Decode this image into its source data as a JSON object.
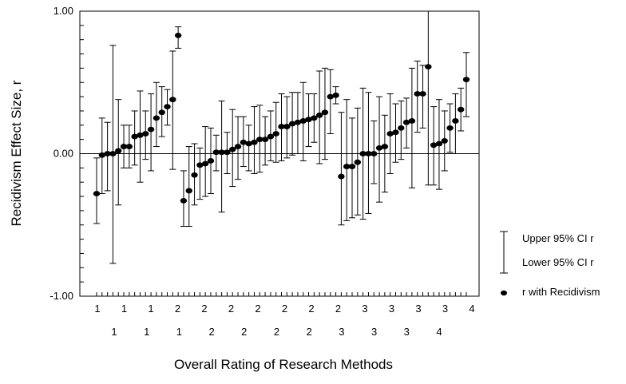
{
  "chart_data": {
    "type": "scatter",
    "xlabel": "Overall Rating of Research Methods",
    "ylabel": "Recidivism Effect Size, r",
    "ylim": [
      -1.0,
      1.0
    ],
    "yticks": [
      {
        "value": 1.0,
        "label": "1.00"
      },
      {
        "value": 0.0,
        "label": "0.00"
      },
      {
        "value": -1.0,
        "label": "-1.00"
      }
    ],
    "reference_line": 0.0,
    "x_tick_rows": [
      [
        "1",
        "1",
        "1",
        "2",
        "2",
        "2",
        "2",
        "2",
        "2",
        "2",
        "3",
        "3",
        "3",
        "3",
        "4"
      ],
      [
        "1",
        "1",
        "1",
        "2",
        "2",
        "2",
        "2",
        "3",
        "3",
        "3",
        "4"
      ]
    ],
    "legend": {
      "position": "right",
      "entries": [
        {
          "symbol": "ci-upper",
          "label": "Upper 95% CI r"
        },
        {
          "symbol": "ci-lower",
          "label": "Lower 95% CI r"
        },
        {
          "symbol": "point",
          "label": "r with Recidivism"
        }
      ]
    },
    "series": [
      {
        "name": "r with Recidivism",
        "points": [
          {
            "rating": 1,
            "r": -0.28,
            "lower": -0.49,
            "upper": -0.03
          },
          {
            "rating": 1,
            "r": -0.01,
            "lower": -0.28,
            "upper": 0.25
          },
          {
            "rating": 1,
            "r": 0.0,
            "lower": -0.26,
            "upper": 0.22
          },
          {
            "rating": 1,
            "r": 0.0,
            "lower": -0.77,
            "upper": 0.76
          },
          {
            "rating": 1,
            "r": 0.02,
            "lower": -0.36,
            "upper": 0.38
          },
          {
            "rating": 1,
            "r": 0.05,
            "lower": -0.1,
            "upper": 0.2
          },
          {
            "rating": 1,
            "r": 0.05,
            "lower": -0.1,
            "upper": 0.2
          },
          {
            "rating": 1,
            "r": 0.12,
            "lower": -0.08,
            "upper": 0.3
          },
          {
            "rating": 1,
            "r": 0.13,
            "lower": -0.2,
            "upper": 0.44
          },
          {
            "rating": 1,
            "r": 0.14,
            "lower": -0.04,
            "upper": 0.3
          },
          {
            "rating": 1,
            "r": 0.17,
            "lower": -0.12,
            "upper": 0.42
          },
          {
            "rating": 1,
            "r": 0.25,
            "lower": 0.05,
            "upper": 0.5
          },
          {
            "rating": 1,
            "r": 0.29,
            "lower": 0.12,
            "upper": 0.47
          },
          {
            "rating": 1,
            "r": 0.33,
            "lower": 0.2,
            "upper": 0.45
          },
          {
            "rating": 1,
            "r": 0.38,
            "lower": -0.11,
            "upper": 0.72
          },
          {
            "rating": 1,
            "r": 0.83,
            "lower": 0.74,
            "upper": 0.89
          },
          {
            "rating": 2,
            "r": -0.33,
            "lower": -0.51,
            "upper": -0.12
          },
          {
            "rating": 2,
            "r": -0.26,
            "lower": -0.51,
            "upper": 0.05
          },
          {
            "rating": 2,
            "r": -0.15,
            "lower": -0.36,
            "upper": 0.07
          },
          {
            "rating": 2,
            "r": -0.08,
            "lower": -0.32,
            "upper": 0.04
          },
          {
            "rating": 2,
            "r": -0.07,
            "lower": -0.3,
            "upper": 0.19
          },
          {
            "rating": 2,
            "r": -0.05,
            "lower": -0.28,
            "upper": 0.18
          },
          {
            "rating": 2,
            "r": 0.01,
            "lower": -0.12,
            "upper": 0.13
          },
          {
            "rating": 2,
            "r": 0.01,
            "lower": -0.41,
            "upper": 0.37
          },
          {
            "rating": 2,
            "r": 0.01,
            "lower": -0.14,
            "upper": 0.15
          },
          {
            "rating": 2,
            "r": 0.03,
            "lower": -0.23,
            "upper": 0.31
          },
          {
            "rating": 2,
            "r": 0.05,
            "lower": -0.18,
            "upper": 0.26
          },
          {
            "rating": 2,
            "r": 0.08,
            "lower": -0.09,
            "upper": 0.26
          },
          {
            "rating": 2,
            "r": 0.07,
            "lower": -0.12,
            "upper": 0.2
          },
          {
            "rating": 2,
            "r": 0.08,
            "lower": -0.14,
            "upper": 0.33
          },
          {
            "rating": 2,
            "r": 0.1,
            "lower": -0.13,
            "upper": 0.34
          },
          {
            "rating": 2,
            "r": 0.1,
            "lower": -0.08,
            "upper": 0.26
          },
          {
            "rating": 2,
            "r": 0.12,
            "lower": -0.05,
            "upper": 0.3
          },
          {
            "rating": 2,
            "r": 0.14,
            "lower": -0.06,
            "upper": 0.36
          },
          {
            "rating": 2,
            "r": 0.19,
            "lower": -0.05,
            "upper": 0.42
          },
          {
            "rating": 2,
            "r": 0.19,
            "lower": -0.03,
            "upper": 0.4
          },
          {
            "rating": 2,
            "r": 0.21,
            "lower": -0.01,
            "upper": 0.43
          },
          {
            "rating": 2,
            "r": 0.22,
            "lower": 0.0,
            "upper": 0.43
          },
          {
            "rating": 2,
            "r": 0.23,
            "lower": -0.05,
            "upper": 0.5
          },
          {
            "rating": 2,
            "r": 0.24,
            "lower": 0.05,
            "upper": 0.42
          },
          {
            "rating": 2,
            "r": 0.25,
            "lower": 0.08,
            "upper": 0.42
          },
          {
            "rating": 2,
            "r": 0.27,
            "lower": -0.07,
            "upper": 0.58
          },
          {
            "rating": 2,
            "r": 0.29,
            "lower": -0.04,
            "upper": 0.6
          },
          {
            "rating": 2,
            "r": 0.4,
            "lower": 0.14,
            "upper": 0.59
          },
          {
            "rating": 2,
            "r": 0.41,
            "lower": 0.35,
            "upper": 0.47
          },
          {
            "rating": 3,
            "r": -0.16,
            "lower": -0.5,
            "upper": 0.29
          },
          {
            "rating": 3,
            "r": -0.09,
            "lower": -0.47,
            "upper": 0.38
          },
          {
            "rating": 3,
            "r": -0.09,
            "lower": -0.45,
            "upper": 0.25
          },
          {
            "rating": 3,
            "r": -0.06,
            "lower": -0.43,
            "upper": 0.32
          },
          {
            "rating": 3,
            "r": 0.0,
            "lower": -0.46,
            "upper": 0.46
          },
          {
            "rating": 3,
            "r": 0.0,
            "lower": -0.42,
            "upper": 0.43
          },
          {
            "rating": 3,
            "r": 0.0,
            "lower": -0.21,
            "upper": 0.23
          },
          {
            "rating": 3,
            "r": 0.04,
            "lower": -0.34,
            "upper": 0.4
          },
          {
            "rating": 3,
            "r": 0.05,
            "lower": -0.27,
            "upper": 0.27
          },
          {
            "rating": 3,
            "r": 0.14,
            "lower": -0.14,
            "upper": 0.42
          },
          {
            "rating": 3,
            "r": 0.15,
            "lower": -0.06,
            "upper": 0.35
          },
          {
            "rating": 3,
            "r": 0.18,
            "lower": -0.04,
            "upper": 0.37
          },
          {
            "rating": 3,
            "r": 0.22,
            "lower": 0.04,
            "upper": 0.39
          },
          {
            "rating": 3,
            "r": 0.23,
            "lower": -0.24,
            "upper": 0.6
          },
          {
            "rating": 3,
            "r": 0.42,
            "lower": 0.15,
            "upper": 0.65
          },
          {
            "rating": 3,
            "r": 0.42,
            "lower": 0.18,
            "upper": 0.62
          },
          {
            "rating": 3,
            "r": 0.61,
            "lower": -0.22,
            "upper": 1.0
          },
          {
            "rating": 4,
            "r": 0.06,
            "lower": -0.22,
            "upper": 0.33
          },
          {
            "rating": 4,
            "r": 0.07,
            "lower": -0.25,
            "upper": 0.38
          },
          {
            "rating": 4,
            "r": 0.09,
            "lower": -0.12,
            "upper": 0.3
          },
          {
            "rating": 4,
            "r": 0.18,
            "lower": 0.01,
            "upper": 0.35
          },
          {
            "rating": 4,
            "r": 0.23,
            "lower": 0.0,
            "upper": 0.42
          },
          {
            "rating": 4,
            "r": 0.31,
            "lower": 0.16,
            "upper": 0.46
          },
          {
            "rating": 4,
            "r": 0.52,
            "lower": 0.26,
            "upper": 0.71
          }
        ]
      }
    ]
  }
}
